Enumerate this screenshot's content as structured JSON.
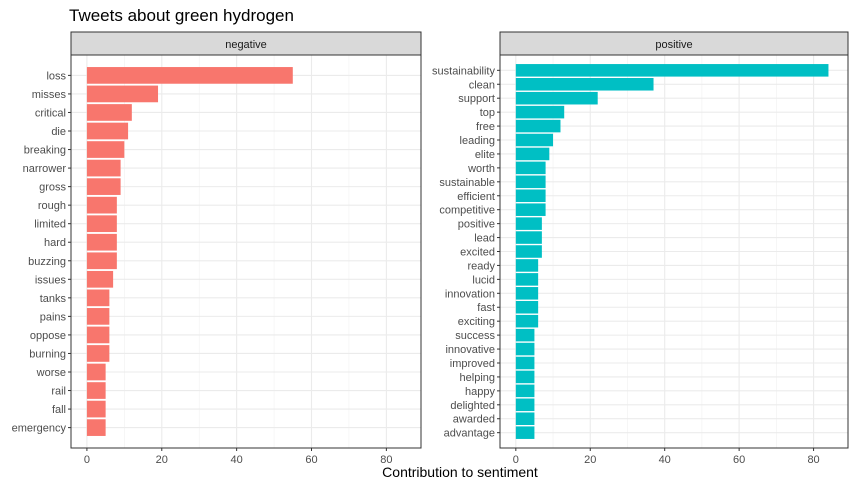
{
  "chart_data": {
    "type": "bar",
    "title": "Tweets about green hydrogen",
    "xlabel": "Contribution to sentiment",
    "ylabel": "",
    "xlim": [
      0,
      85
    ],
    "x_ticks": [
      0,
      20,
      40,
      60,
      80
    ],
    "grid": true,
    "orientation": "horizontal",
    "panels": [
      {
        "name": "negative",
        "color": "#F8766D",
        "categories": [
          "loss",
          "misses",
          "critical",
          "die",
          "breaking",
          "narrower",
          "gross",
          "rough",
          "limited",
          "hard",
          "buzzing",
          "issues",
          "tanks",
          "pains",
          "oppose",
          "burning",
          "worse",
          "rail",
          "fall",
          "emergency"
        ],
        "values": [
          55,
          19,
          12,
          11,
          10,
          9,
          9,
          8,
          8,
          8,
          8,
          7,
          6,
          6,
          6,
          6,
          5,
          5,
          5,
          5
        ]
      },
      {
        "name": "positive",
        "color": "#00BFC4",
        "categories": [
          "sustainability",
          "clean",
          "support",
          "top",
          "free",
          "leading",
          "elite",
          "worth",
          "sustainable",
          "efficient",
          "competitive",
          "positive",
          "lead",
          "excited",
          "ready",
          "lucid",
          "innovation",
          "fast",
          "exciting",
          "success",
          "innovative",
          "improved",
          "helping",
          "happy",
          "delighted",
          "awarded",
          "advantage"
        ],
        "values": [
          84,
          37,
          22,
          13,
          12,
          10,
          9,
          8,
          8,
          8,
          8,
          7,
          7,
          7,
          6,
          6,
          6,
          6,
          6,
          5,
          5,
          5,
          5,
          5,
          5,
          5,
          5
        ]
      }
    ]
  }
}
